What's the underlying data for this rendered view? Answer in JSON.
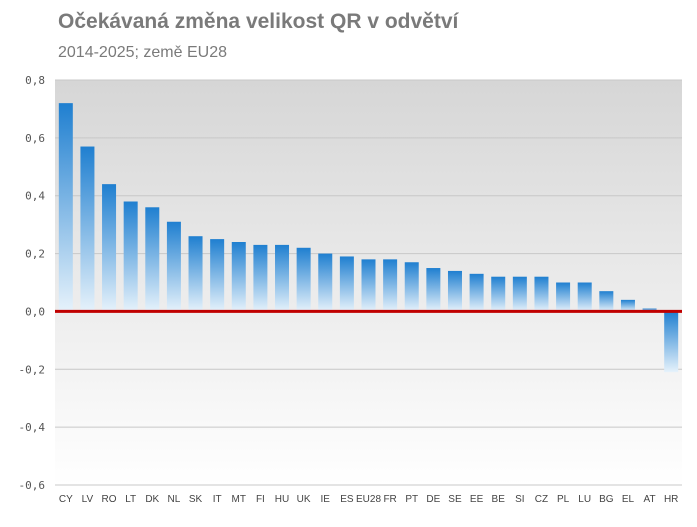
{
  "header": {
    "title": "Očekávaná změna velikost QR v odvětví",
    "subtitle": "2014-2025; země EU28"
  },
  "chart_data": {
    "type": "bar",
    "title": "Očekávaná změna velikost QR v odvětví",
    "subtitle": "2014-2025; země EU28",
    "categories": [
      "CY",
      "LV",
      "RO",
      "LT",
      "DK",
      "NL",
      "SK",
      "IT",
      "MT",
      "FI",
      "HU",
      "UK",
      "IE",
      "ES",
      "EU28",
      "FR",
      "PT",
      "DE",
      "SE",
      "EE",
      "BE",
      "SI",
      "CZ",
      "PL",
      "LU",
      "BG",
      "EL",
      "AT",
      "HR"
    ],
    "values": [
      0.72,
      0.57,
      0.44,
      0.38,
      0.36,
      0.31,
      0.26,
      0.25,
      0.24,
      0.23,
      0.23,
      0.22,
      0.2,
      0.19,
      0.18,
      0.18,
      0.17,
      0.15,
      0.14,
      0.13,
      0.12,
      0.12,
      0.12,
      0.1,
      0.1,
      0.07,
      0.04,
      0.01,
      -0.21
    ],
    "ylim": [
      -0.6,
      0.8
    ],
    "yticks": [
      "0,8",
      "0,6",
      "0,4",
      "0,2",
      "0,0",
      "-0,2",
      "-0,4",
      "-0,6"
    ],
    "ytick_values": [
      0.8,
      0.6,
      0.4,
      0.2,
      0.0,
      -0.2,
      -0.4,
      -0.6
    ],
    "grid": true,
    "legend": "none",
    "colors": {
      "bar_top": "#1f7fd0",
      "bar_bottom": "#e6f2fb",
      "zero_line": "#c00000",
      "grid": "#c8c8c8",
      "plot_bg_top": "#d6d6d6",
      "plot_bg_bottom": "#ffffff"
    }
  }
}
